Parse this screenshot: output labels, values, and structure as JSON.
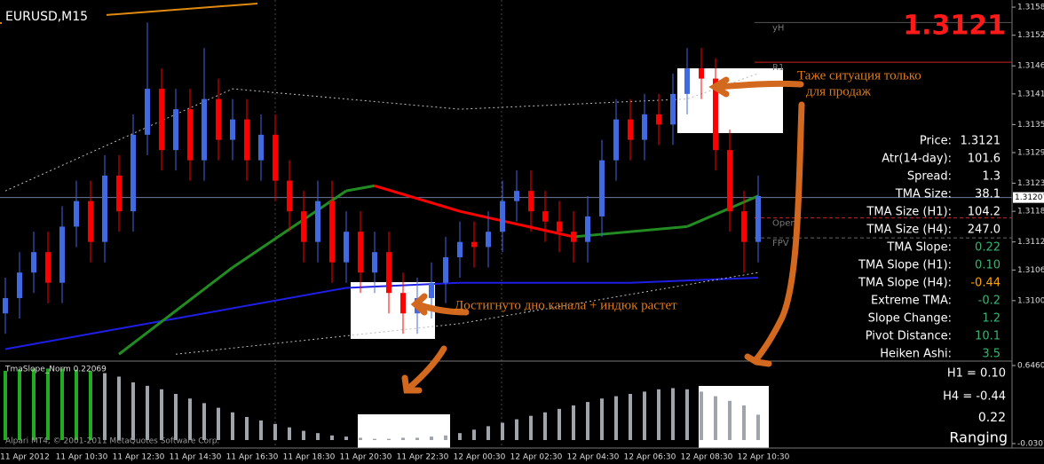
{
  "symbol": "EURUSD,M15",
  "big_price": "1.3121",
  "copyright": "Alpari MT4, © 2001-2011 MetaQuotes Software Corp.",
  "info_panel": [
    {
      "label": "Price:",
      "value": "1.3121",
      "color": "#ffffff"
    },
    {
      "label": "Atr(14-day):",
      "value": "101.6",
      "color": "#ffffff"
    },
    {
      "label": "Spread:",
      "value": "1.3",
      "color": "#ffffff"
    },
    {
      "label": "TMA Size:",
      "value": "38.1",
      "color": "#ffffff"
    },
    {
      "label": "TMA Size (H1):",
      "value": "104.2",
      "color": "#ffffff"
    },
    {
      "label": "TMA Size (H4):",
      "value": "247.0",
      "color": "#ffffff"
    },
    {
      "label": "TMA Slope:",
      "value": "0.22",
      "color": "#3cb371"
    },
    {
      "label": "TMA Slope (H1):",
      "value": "0.10",
      "color": "#3cb371"
    },
    {
      "label": "TMA Slope (H4):",
      "value": "-0.44",
      "color": "#ffa500"
    },
    {
      "label": "Extreme TMA:",
      "value": "-0.2",
      "color": "#3cb371"
    },
    {
      "label": "Slope Change:",
      "value": "1.2",
      "color": "#3cb371"
    },
    {
      "label": "Pivot Distance:",
      "value": "10.1",
      "color": "#3cb371"
    },
    {
      "label": "Heiken Ashi:",
      "value": "3.5",
      "color": "#3cb371"
    }
  ],
  "annotations": {
    "sell_note": [
      "Таже ситуация только",
      "для продаж"
    ],
    "buy_note": "Достигнуто дно канала + индюк растет"
  },
  "indicator_panel": {
    "h1": "H1 = 0.10",
    "h4": "H4 = -0.44",
    "value": "0.22",
    "state": "Ranging"
  },
  "chart_data": [
    {
      "type": "candlestick",
      "up_color": "#4169e1",
      "down_color": "#ff0000",
      "ylim": [
        1.3089,
        1.31594
      ],
      "yticks": [
        {
          "value": 1.3158,
          "label": "1.31580"
        },
        {
          "value": 1.31525,
          "label": "1.31525"
        },
        {
          "value": 1.31465,
          "label": "1.31465"
        },
        {
          "value": 1.3141,
          "label": "1.31410"
        },
        {
          "value": 1.3135,
          "label": "1.31350"
        },
        {
          "value": 1.31295,
          "label": "1.31295"
        },
        {
          "value": 1.31235,
          "label": "1.31235"
        },
        {
          "value": 1.3118,
          "label": "1.31180"
        },
        {
          "value": 1.3112,
          "label": "1.31120"
        },
        {
          "value": 1.31065,
          "label": "1.31065"
        },
        {
          "value": 1.31005,
          "label": "1.31005"
        }
      ],
      "time_labels": [
        "11 Apr 2012",
        "11 Apr 10:30",
        "11 Apr 12:30",
        "11 Apr 14:30",
        "11 Apr 16:30",
        "11 Apr 18:30",
        "11 Apr 20:30",
        "11 Apr 22:30",
        "12 Apr 00:30",
        "12 Apr 02:30",
        "12 Apr 04:30",
        "12 Apr 06:30",
        "12 Apr 08:30",
        "12 Apr 10:30"
      ],
      "open": [
        1.3098,
        1.3101,
        1.3106,
        1.311,
        1.3104,
        1.3115,
        1.312,
        1.3112,
        1.3125,
        1.3118,
        1.3133,
        1.3142,
        1.313,
        1.3138,
        1.3128,
        1.314,
        1.3132,
        1.3136,
        1.3128,
        1.3133,
        1.3124,
        1.3118,
        1.3112,
        1.312,
        1.3108,
        1.3114,
        1.3106,
        1.311,
        1.3102,
        1.3098,
        1.3101,
        1.3104,
        1.3109,
        1.3112,
        1.3111,
        1.3114,
        1.312,
        1.3122,
        1.3118,
        1.3116,
        1.3114,
        1.3112,
        1.3117,
        1.3128,
        1.3136,
        1.3132,
        1.3137,
        1.3135,
        1.3141,
        1.3146,
        1.3144,
        1.313,
        1.3118,
        1.3112
      ],
      "high": [
        1.3105,
        1.311,
        1.3114,
        1.3114,
        1.3119,
        1.3124,
        1.3124,
        1.3129,
        1.3129,
        1.3137,
        1.3155,
        1.3146,
        1.3142,
        1.3142,
        1.315,
        1.3144,
        1.314,
        1.314,
        1.3137,
        1.3137,
        1.3128,
        1.3122,
        1.3124,
        1.3124,
        1.3118,
        1.3118,
        1.3114,
        1.3114,
        1.3106,
        1.3105,
        1.3108,
        1.3113,
        1.3116,
        1.3116,
        1.3118,
        1.3124,
        1.3126,
        1.3126,
        1.3122,
        1.312,
        1.3118,
        1.3121,
        1.3132,
        1.314,
        1.314,
        1.3141,
        1.3141,
        1.3145,
        1.315,
        1.315,
        1.3148,
        1.3134,
        1.3122,
        1.3125
      ],
      "low": [
        1.3094,
        1.3097,
        1.3102,
        1.31,
        1.31,
        1.3111,
        1.3108,
        1.3108,
        1.3114,
        1.3114,
        1.3129,
        1.3126,
        1.3126,
        1.3124,
        1.3124,
        1.3128,
        1.3128,
        1.3124,
        1.3124,
        1.312,
        1.3114,
        1.3108,
        1.3108,
        1.3104,
        1.3104,
        1.3102,
        1.3102,
        1.3098,
        1.3094,
        1.3094,
        1.3097,
        1.31,
        1.3105,
        1.3107,
        1.3107,
        1.311,
        1.3116,
        1.3114,
        1.3112,
        1.311,
        1.3108,
        1.3108,
        1.3113,
        1.3124,
        1.3128,
        1.3128,
        1.3131,
        1.3131,
        1.3137,
        1.314,
        1.3126,
        1.3114,
        1.3106,
        1.3108
      ],
      "close": [
        1.3101,
        1.3106,
        1.311,
        1.3104,
        1.3115,
        1.312,
        1.3112,
        1.3125,
        1.3118,
        1.3133,
        1.3142,
        1.313,
        1.3138,
        1.3128,
        1.314,
        1.3132,
        1.3136,
        1.3128,
        1.3133,
        1.3124,
        1.3118,
        1.3112,
        1.312,
        1.3108,
        1.3114,
        1.3106,
        1.311,
        1.3102,
        1.3098,
        1.3101,
        1.3104,
        1.3109,
        1.3112,
        1.3111,
        1.3114,
        1.312,
        1.3122,
        1.3118,
        1.3116,
        1.3114,
        1.3112,
        1.3117,
        1.3128,
        1.3136,
        1.3132,
        1.3137,
        1.3135,
        1.3141,
        1.3146,
        1.3144,
        1.313,
        1.3118,
        1.3112,
        1.3121
      ],
      "tma": {
        "up_color": "#228b22",
        "down_color": "#ff0000",
        "x": [
          8,
          16,
          24,
          26,
          32,
          40,
          48,
          53
        ],
        "values": [
          1.309,
          1.3107,
          1.3122,
          1.3123,
          1.3118,
          1.3113,
          1.3115,
          1.3121
        ]
      },
      "lines": [
        {
          "color": "#1e1ee6",
          "dash": false,
          "x": [
            0,
            12,
            24,
            32,
            44,
            53
          ],
          "values": [
            1.3091,
            1.3097,
            1.3103,
            1.3104,
            1.3104,
            1.3105
          ]
        },
        {
          "color": "#bbbbbb",
          "dash": true,
          "x": [
            0,
            16,
            32,
            48,
            53
          ],
          "values": [
            1.3122,
            1.3142,
            1.3138,
            1.314,
            1.3145
          ]
        },
        {
          "color": "#bbbbbb",
          "dash": true,
          "x": [
            12,
            32,
            53
          ],
          "values": [
            1.309,
            1.3096,
            1.3106
          ]
        }
      ],
      "levels": [
        {
          "label": "yH",
          "value": 1.3155,
          "color": "#555555"
        },
        {
          "label": "R1",
          "value": 1.31472,
          "color": "#cc2222"
        },
        {
          "label": "Open",
          "value": 1.31167,
          "color": "#cc2222"
        },
        {
          "label": "FPV",
          "value": 1.31128,
          "color": "#666666"
        }
      ],
      "current_price": {
        "value": 1.31207,
        "label": "1.31207"
      }
    },
    {
      "type": "bar",
      "title": "TmaSlope_Norm 0.22069",
      "ylim": [
        -0.03077,
        0.64607
      ],
      "yticks": [
        0.64607,
        -0.03077
      ],
      "series": [
        {
          "color": "#22aa22",
          "values": [
            0.6,
            0.61,
            0.62,
            0.62,
            0.62,
            0.61,
            0.6,
            null,
            null,
            null,
            null,
            null,
            null,
            null,
            null,
            null,
            null,
            null,
            null,
            null,
            null,
            null,
            null,
            null,
            null,
            null,
            null,
            null,
            null,
            null,
            null,
            null,
            null,
            null,
            null,
            null,
            null,
            null,
            null,
            null,
            null,
            null,
            null,
            null,
            null,
            null,
            null,
            null,
            null,
            null,
            null,
            null,
            null,
            null
          ]
        },
        {
          "color": "#a0a4ac",
          "values": [
            null,
            null,
            null,
            null,
            null,
            null,
            null,
            0.58,
            0.55,
            0.5,
            0.47,
            0.44,
            0.4,
            0.36,
            0.32,
            0.28,
            0.24,
            0.2,
            0.17,
            0.14,
            0.11,
            0.08,
            0.06,
            0.04,
            0.03,
            0.02,
            0.01,
            0.01,
            0.02,
            0.02,
            0.03,
            0.04,
            0.06,
            0.09,
            0.12,
            0.15,
            0.18,
            0.21,
            0.24,
            0.27,
            0.3,
            0.33,
            0.36,
            0.38,
            0.4,
            0.42,
            0.44,
            0.45,
            0.44,
            0.42,
            0.38,
            0.34,
            0.3,
            0.22
          ]
        }
      ]
    }
  ]
}
